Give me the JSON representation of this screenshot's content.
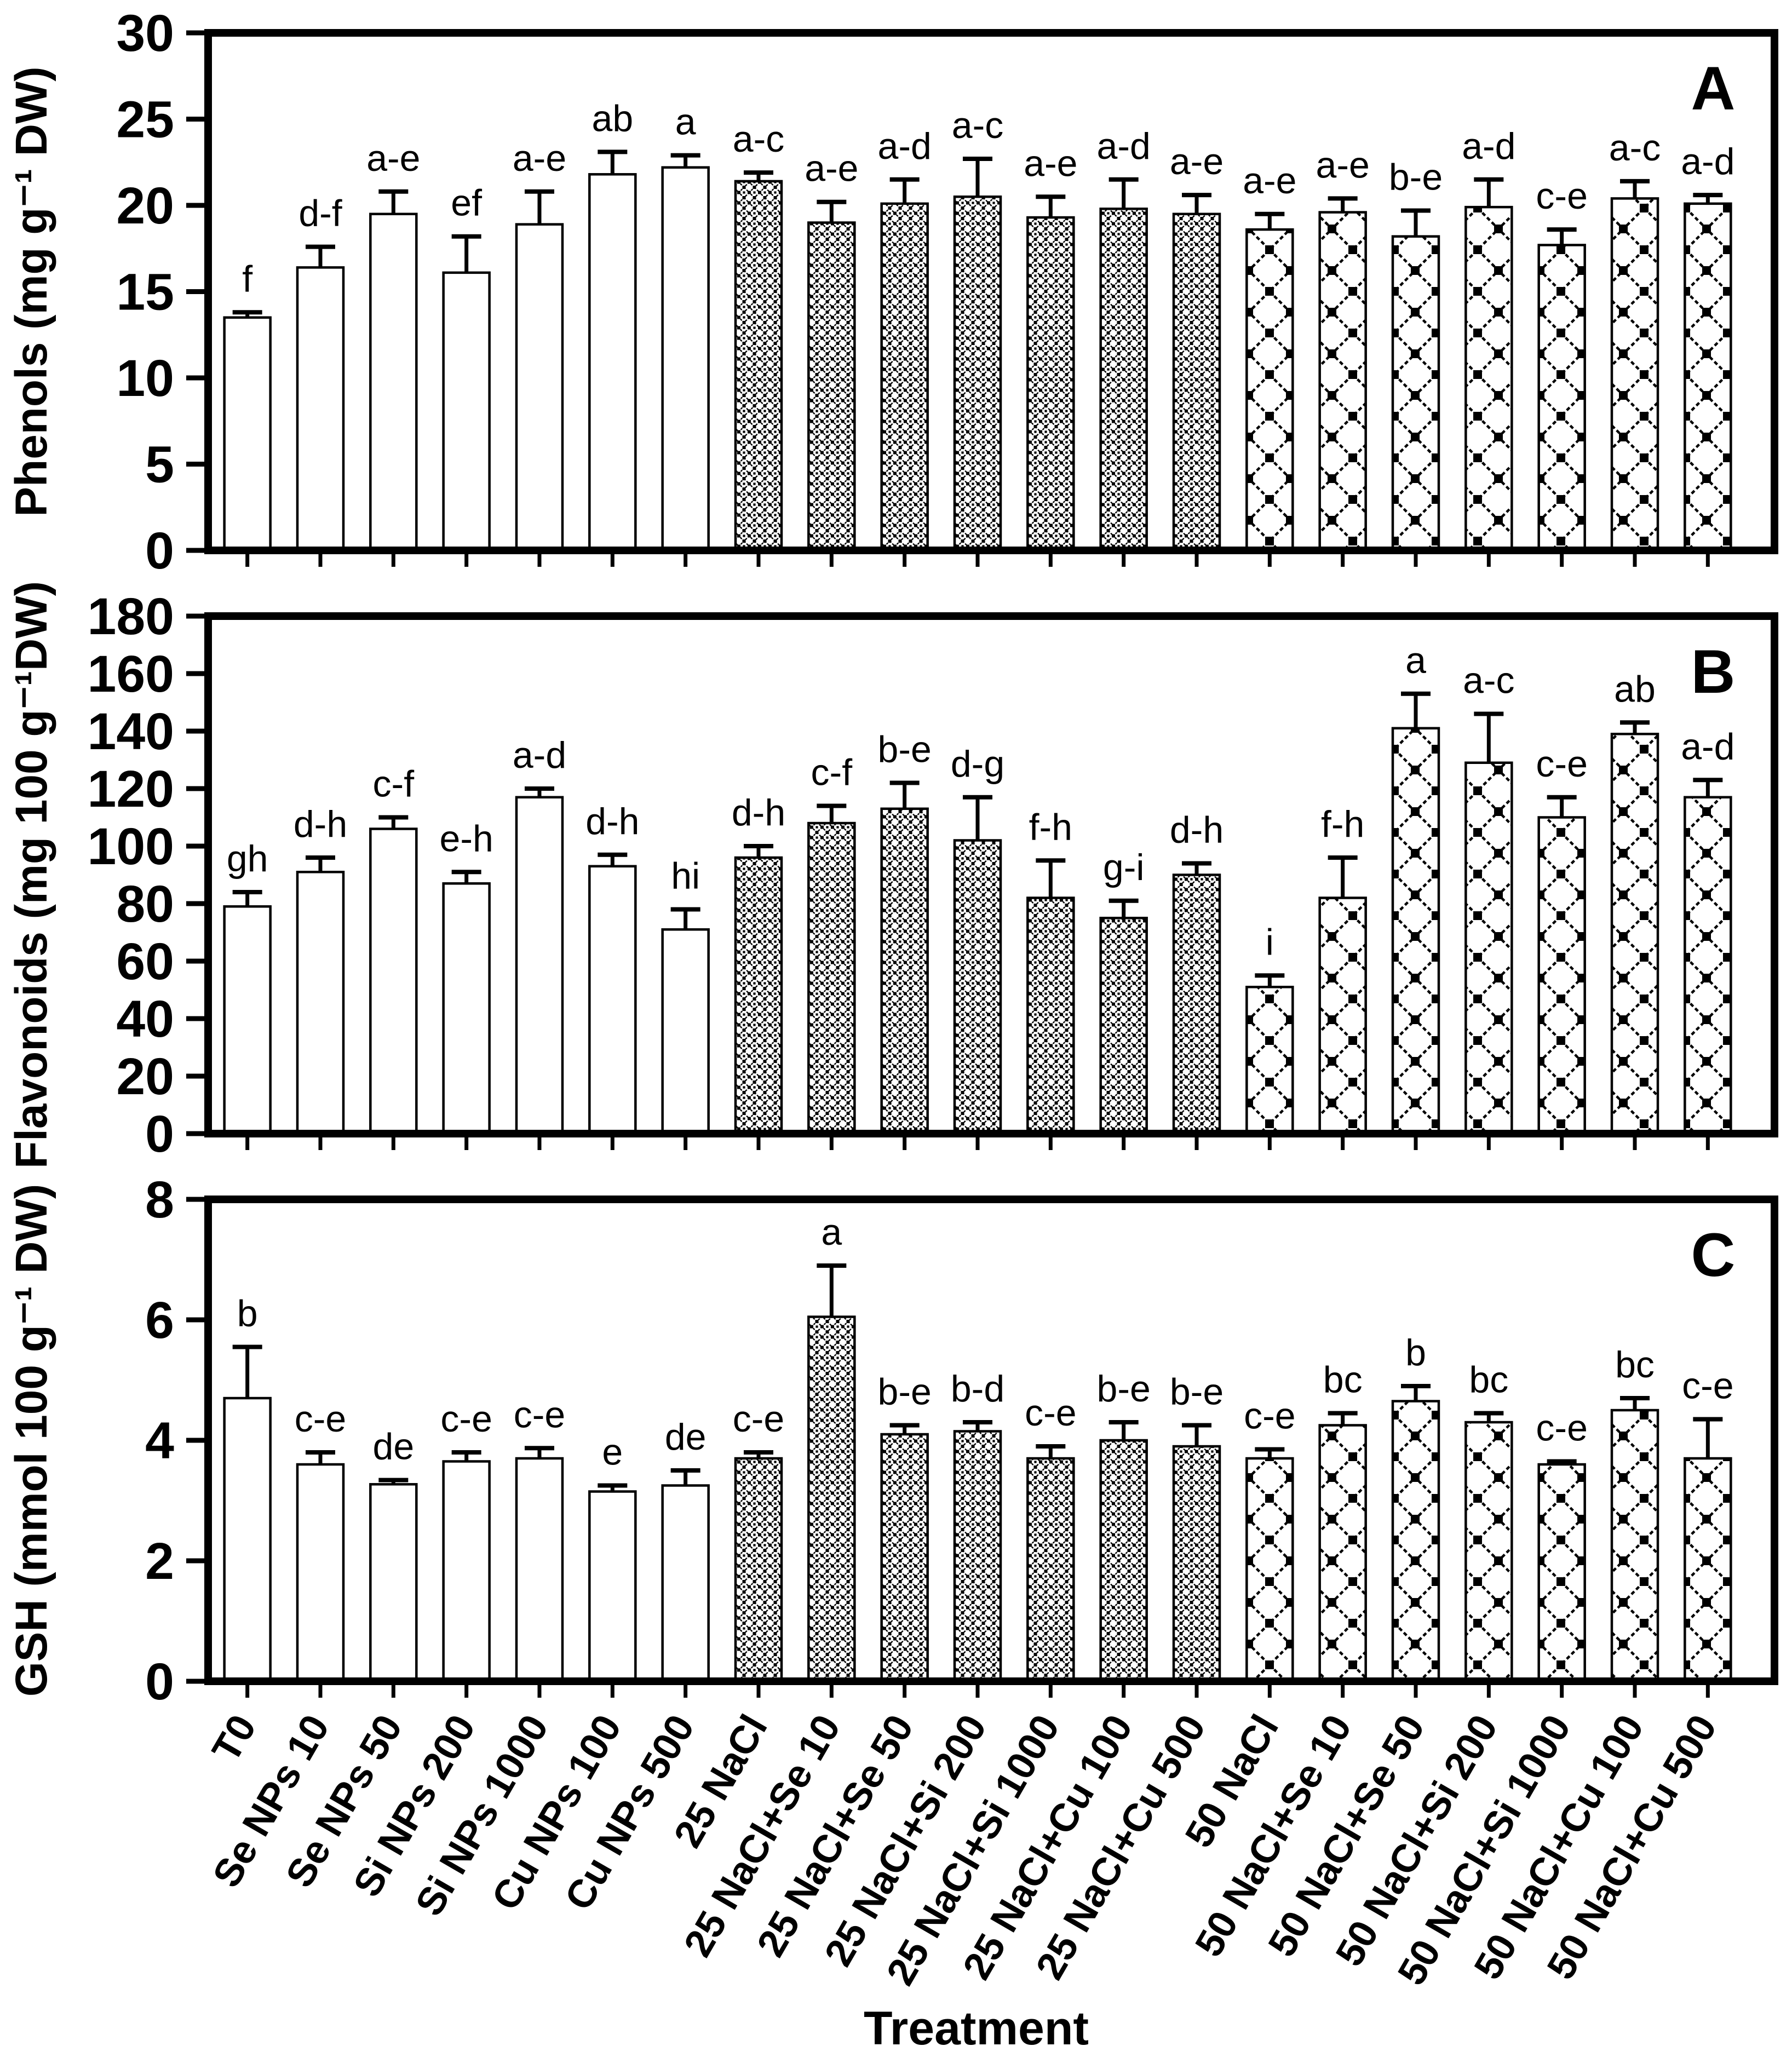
{
  "figure_title": "",
  "xlabel": "Treatment",
  "categories": [
    "T0",
    "Se NPs 10",
    "Se NPs 50",
    "Si NPs 200",
    "Si NPs 1000",
    "Cu NPs 100",
    "Cu NPs 500",
    "25 NaCl",
    "25 NaCl+Se 10",
    "25 NaCl+Se 50",
    "25 NaCl+Si 200",
    "25 NaCl+Si 1000",
    "25 NaCl+Cu 100",
    "25 NaCl+Cu 500",
    "50 NaCl",
    "50 NaCl+Se 10",
    "50 NaCl+Se 50",
    "50 NaCl+Si 200",
    "50 NaCl+Si 1000",
    "50 NaCl+Cu 100",
    "50 NaCl+Cu 500"
  ],
  "bar_groups": [
    {
      "pattern": "open-white",
      "from_category": "T0",
      "to_category": "Cu NPs 500"
    },
    {
      "pattern": "fine-checker-hatch",
      "from_category": "25 NaCl",
      "to_category": "25 NaCl+Cu 500"
    },
    {
      "pattern": "coarse-diamond-crosshatch",
      "from_category": "50 NaCl",
      "to_category": "50 NaCl+Cu 500"
    }
  ],
  "colors": {
    "foreground": "#000000",
    "background": "#ffffff",
    "bar_fill": "#ffffff"
  },
  "chart_data": [
    {
      "type": "bar",
      "panel_label": "A",
      "ylabel": "Phenols (mg g⁻¹ DW)",
      "xlabel": "Treatment",
      "ylim": [
        0,
        30
      ],
      "ytick_step": 5,
      "grid": false,
      "legend": null,
      "error_bars": "upper",
      "categories": [
        "T0",
        "Se NPs 10",
        "Se NPs 50",
        "Si NPs 200",
        "Si NPs 1000",
        "Cu NPs 100",
        "Cu NPs 500",
        "25 NaCl",
        "25 NaCl+Se 10",
        "25 NaCl+Se 50",
        "25 NaCl+Si 200",
        "25 NaCl+Si 1000",
        "25 NaCl+Cu 100",
        "25 NaCl+Cu 500",
        "50 NaCl",
        "50 NaCl+Se 10",
        "50 NaCl+Se 50",
        "50 NaCl+Si 200",
        "50 NaCl+Si 1000",
        "50 NaCl+Cu 100",
        "50 NaCl+Cu 500"
      ],
      "values": [
        13.5,
        16.4,
        19.5,
        16.1,
        18.9,
        21.8,
        22.2,
        21.4,
        19.0,
        20.1,
        20.5,
        19.3,
        19.8,
        19.5,
        18.6,
        19.6,
        18.2,
        19.9,
        17.7,
        20.4,
        20.1
      ],
      "errors_plus": [
        0.3,
        1.2,
        1.3,
        2.1,
        1.9,
        1.3,
        0.7,
        0.5,
        1.2,
        1.4,
        2.2,
        1.2,
        1.7,
        1.1,
        0.9,
        0.8,
        1.5,
        1.6,
        0.9,
        1.0,
        0.5
      ],
      "sig_letters": [
        "f",
        "d-f",
        "a-e",
        "ef",
        "a-e",
        "ab",
        "a",
        "a-c",
        "a-e",
        "a-d",
        "a-c",
        "a-e",
        "a-d",
        "a-e",
        "a-e",
        "a-e",
        "b-e",
        "a-d",
        "c-e",
        "a-c",
        "a-d"
      ]
    },
    {
      "type": "bar",
      "panel_label": "B",
      "ylabel": "Flavonoids (mg 100 g⁻¹DW)",
      "xlabel": "Treatment",
      "ylim": [
        0,
        180
      ],
      "ytick_step": 20,
      "grid": false,
      "legend": null,
      "error_bars": "upper",
      "categories": [
        "T0",
        "Se NPs 10",
        "Se NPs 50",
        "Si NPs 200",
        "Si NPs 1000",
        "Cu NPs 100",
        "Cu NPs 500",
        "25 NaCl",
        "25 NaCl+Se 10",
        "25 NaCl+Se 50",
        "25 NaCl+Si 200",
        "25 NaCl+Si 1000",
        "25 NaCl+Cu 100",
        "25 NaCl+Cu 500",
        "50 NaCl",
        "50 NaCl+Se 10",
        "50 NaCl+Se 50",
        "50 NaCl+Si 200",
        "50 NaCl+Si 1000",
        "50 NaCl+Cu 100",
        "50 NaCl+Cu 500"
      ],
      "values": [
        79,
        91,
        106,
        87,
        117,
        93,
        71,
        96,
        108,
        113,
        102,
        82,
        75,
        90,
        51,
        82,
        141,
        129,
        110,
        139,
        117
      ],
      "errors_plus": [
        5,
        5,
        4,
        4,
        3,
        4,
        7,
        4,
        6,
        9,
        15,
        13,
        6,
        4,
        4,
        14,
        12,
        17,
        7,
        4,
        6
      ],
      "sig_letters": [
        "gh",
        "d-h",
        "c-f",
        "e-h",
        "a-d",
        "d-h",
        "hi",
        "d-h",
        "c-f",
        "b-e",
        "d-g",
        "f-h",
        "g-i",
        "d-h",
        "i",
        "f-h",
        "a",
        "a-c",
        "c-e",
        "ab",
        "a-d"
      ]
    },
    {
      "type": "bar",
      "panel_label": "C",
      "ylabel": "GSH (mmol 100 g⁻¹ DW)",
      "xlabel": "Treatment",
      "ylim": [
        0,
        8
      ],
      "ytick_step": 2,
      "grid": false,
      "legend": null,
      "error_bars": "upper",
      "categories": [
        "T0",
        "Se NPs 10",
        "Se NPs 50",
        "Si NPs 200",
        "Si NPs 1000",
        "Cu NPs 100",
        "Cu NPs 500",
        "25 NaCl",
        "25 NaCl+Se 10",
        "25 NaCl+Se 50",
        "25 NaCl+Si 200",
        "25 NaCl+Si 1000",
        "25 NaCl+Cu 100",
        "25 NaCl+Cu 500",
        "50 NaCl",
        "50 NaCl+Se 10",
        "50 NaCl+Se 50",
        "50 NaCl+Si 200",
        "50 NaCl+Si 1000",
        "50 NaCl+Cu 100",
        "50 NaCl+Cu 500"
      ],
      "values": [
        4.7,
        3.6,
        3.27,
        3.65,
        3.7,
        3.15,
        3.25,
        3.7,
        6.05,
        4.1,
        4.15,
        3.7,
        4.0,
        3.9,
        3.7,
        4.25,
        4.65,
        4.3,
        3.6,
        4.5,
        3.7
      ],
      "errors_plus": [
        0.85,
        0.2,
        0.07,
        0.15,
        0.17,
        0.1,
        0.25,
        0.1,
        0.85,
        0.15,
        0.15,
        0.2,
        0.3,
        0.35,
        0.15,
        0.2,
        0.25,
        0.15,
        0.05,
        0.2,
        0.65
      ],
      "sig_letters": [
        "b",
        "c-e",
        "de",
        "c-e",
        "c-e",
        "e",
        "de",
        "c-e",
        "a",
        "b-e",
        "b-d",
        "c-e",
        "b-e",
        "b-e",
        "c-e",
        "bc",
        "b",
        "bc",
        "c-e",
        "bc",
        "c-e"
      ]
    }
  ]
}
